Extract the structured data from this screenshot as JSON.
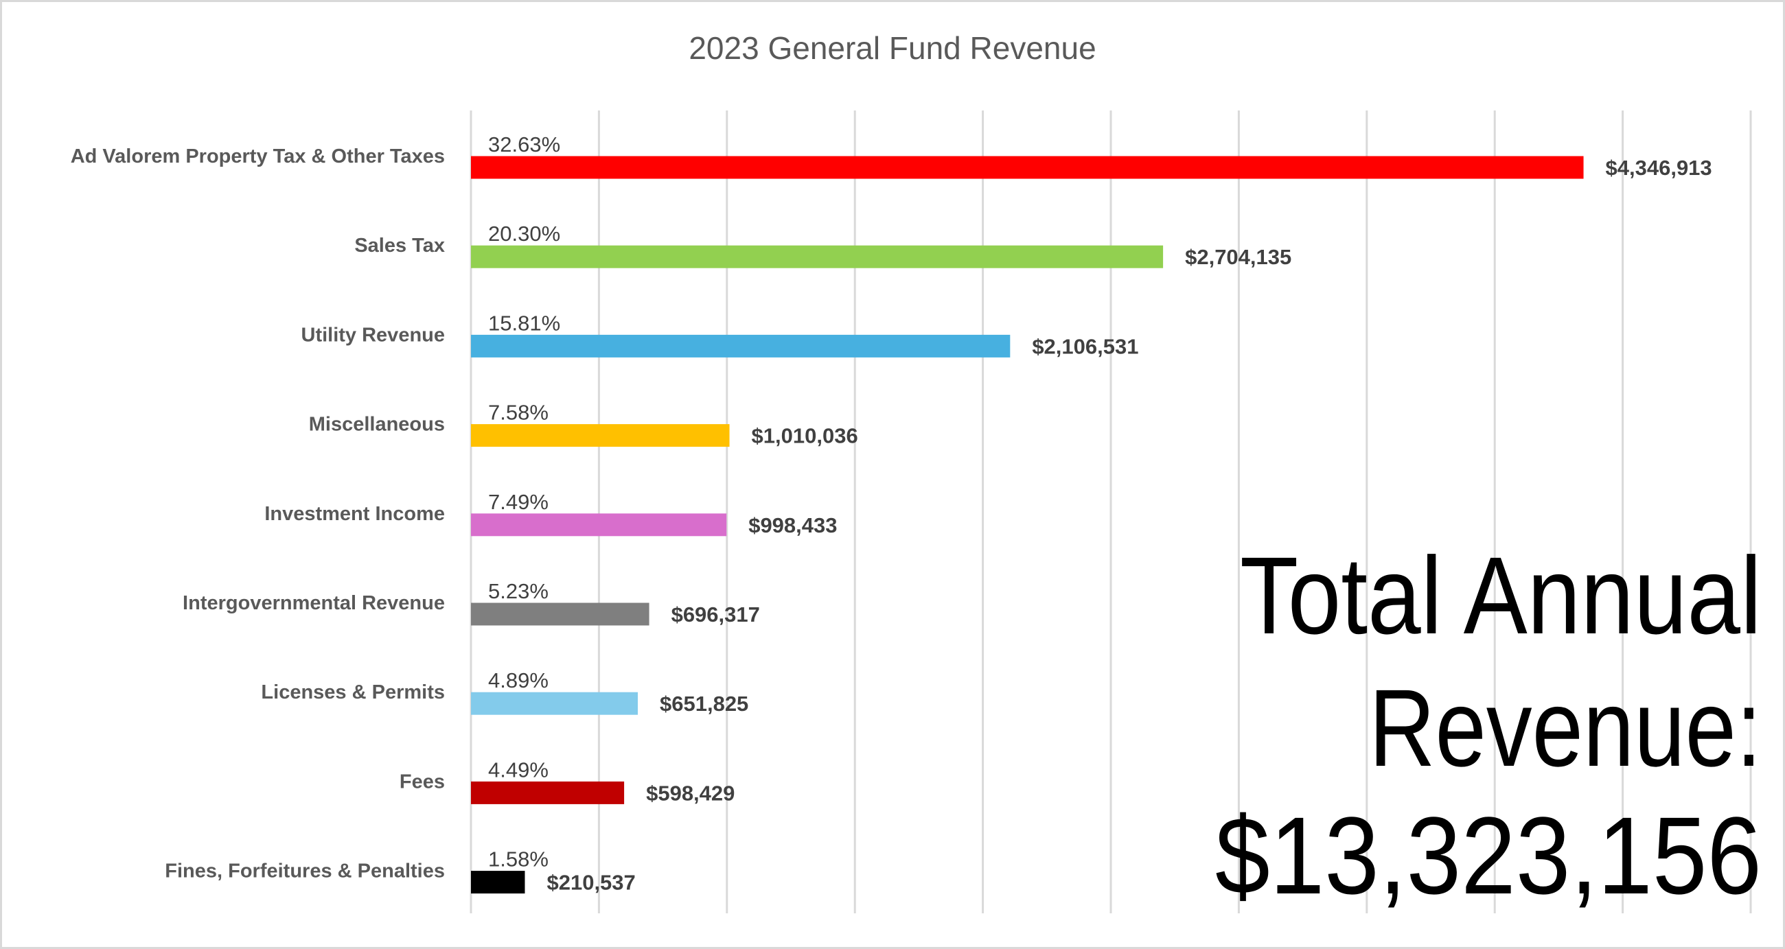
{
  "chart_data": {
    "type": "bar",
    "orientation": "horizontal",
    "title": "2023 General Fund Revenue",
    "xlim": [
      0,
      5000000
    ],
    "x_gridline_step": 500000,
    "grid": true,
    "categories": [
      "Ad Valorem Property Tax & Other Taxes",
      "Sales Tax",
      "Utility Revenue",
      "Miscellaneous",
      "Investment Income",
      "Intergovernmental Revenue",
      "Licenses & Permits",
      "Fees",
      "Fines, Forfeitures & Penalties"
    ],
    "values": [
      4346913,
      2704135,
      2106531,
      1010036,
      998433,
      696317,
      651825,
      598429,
      210537
    ],
    "value_labels": [
      "$4,346,913",
      "$2,704,135",
      "$2,106,531",
      "$1,010,036",
      "$998,433",
      "$696,317",
      "$651,825",
      "$598,429",
      "$210,537"
    ],
    "percent_labels": [
      "32.63%",
      "20.30%",
      "15.81%",
      "7.58%",
      "7.49%",
      "5.23%",
      "4.89%",
      "4.49%",
      "1.58%"
    ],
    "colors": [
      "#FF0000",
      "#92D050",
      "#47B0E0",
      "#FFC000",
      "#D86ECC",
      "#7F7F7F",
      "#83CBEB",
      "#C00000",
      "#000000"
    ],
    "annotation": {
      "lines": [
        "Total Annual",
        "Revenue:",
        "$13,323,156"
      ]
    }
  }
}
